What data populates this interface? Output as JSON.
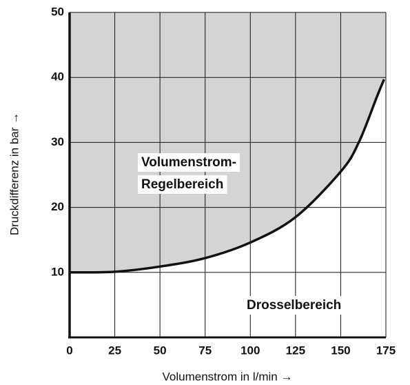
{
  "chart_data": {
    "type": "line",
    "x_label": "Volumenstrom in l/min →",
    "y_label": "Druckdifferenz in bar →",
    "x": [
      0,
      25,
      50,
      75,
      100,
      125,
      150,
      160,
      170,
      174
    ],
    "series": [
      {
        "color": "#111111",
        "values": [
          10,
          10.1,
          10.9,
          12.2,
          14.6,
          18.5,
          25.5,
          30,
          37,
          39.7
        ]
      }
    ],
    "area_color": "#d4d4d4",
    "xlim": [
      0,
      175
    ],
    "xticks": [
      0,
      25,
      50,
      75,
      100,
      125,
      150,
      175
    ],
    "ylim": [
      0,
      50
    ],
    "yticks": [
      10,
      20,
      30,
      40,
      50
    ],
    "grid": true,
    "annotations": [
      "Volumenstrom-",
      "Regelbereich",
      "Drosselbereich"
    ]
  }
}
